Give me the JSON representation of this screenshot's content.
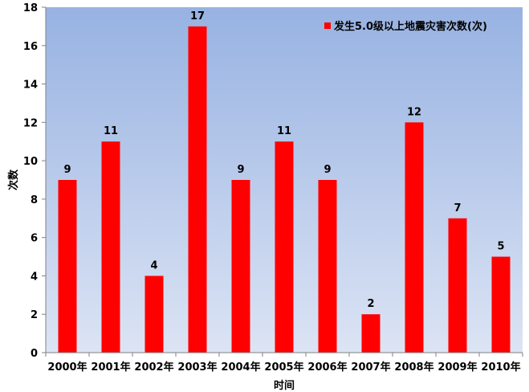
{
  "chart_data": {
    "type": "bar",
    "title": "",
    "xlabel": "时间",
    "ylabel": "次数",
    "ylim": [
      0,
      18
    ],
    "yticks": [
      0,
      2,
      4,
      6,
      8,
      10,
      12,
      14,
      16,
      18
    ],
    "grid": false,
    "legend_position": "top-right inside",
    "categories": [
      "2000年",
      "2001年",
      "2002年",
      "2003年",
      "2004年",
      "2005年",
      "2006年",
      "2007年",
      "2008年",
      "2009年",
      "2010年"
    ],
    "series": [
      {
        "name": "发生5.0级以上地震灾害次数(次)",
        "color": "#FF0000",
        "values": [
          9,
          11,
          4,
          17,
          9,
          11,
          9,
          2,
          12,
          7,
          5
        ]
      }
    ],
    "data_labels": true
  },
  "colors": {
    "bar": "#FF0000",
    "plot_bg_top": "#97B2E2",
    "plot_bg_bottom": "#DCE4F4",
    "axis": "#808080"
  }
}
